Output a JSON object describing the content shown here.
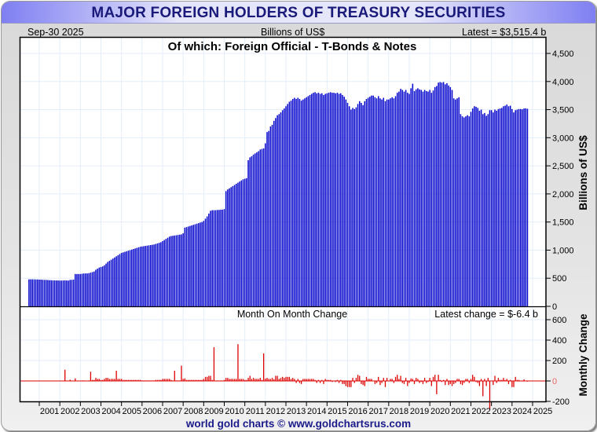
{
  "header": {
    "title": "MAJOR FOREIGN HOLDERS OF TREASURY SECURITIES",
    "date": "Sep-30  2025",
    "units": "Billions of US$",
    "latest": "Latest = $3,515.4 b"
  },
  "footer": {
    "credit": "world gold charts © www.goldchartsrus.com"
  },
  "chart_data": [
    {
      "type": "bar",
      "title": "Of which: Foreign Official - T-Bonds & Notes",
      "ylabel": "Billions of US$",
      "xlabel": "",
      "ylim": [
        0,
        4600
      ],
      "yticks": [
        0,
        500,
        1000,
        1500,
        2000,
        2500,
        3000,
        3500,
        4000,
        4500
      ],
      "ytick_labels": [
        "0",
        "500",
        "1,000",
        "1,500",
        "2,000",
        "2,500",
        "3,000",
        "3,500",
        "4,000",
        "4,500"
      ],
      "grid": true,
      "color": "#0000cc",
      "start": "2000-07",
      "frequency": "monthly",
      "values": [
        480,
        480,
        480,
        480,
        478,
        478,
        475,
        475,
        472,
        470,
        470,
        468,
        465,
        465,
        462,
        462,
        460,
        460,
        458,
        458,
        460,
        462,
        460,
        458,
        470,
        472,
        475,
        575,
        575,
        575,
        575,
        580,
        585,
        585,
        585,
        590,
        600,
        610,
        620,
        650,
        670,
        690,
        700,
        710,
        730,
        760,
        790,
        810,
        830,
        850,
        870,
        890,
        910,
        930,
        950,
        960,
        970,
        980,
        990,
        1000,
        1010,
        1020,
        1030,
        1040,
        1050,
        1060,
        1065,
        1070,
        1075,
        1080,
        1085,
        1090,
        1095,
        1100,
        1110,
        1120,
        1130,
        1140,
        1160,
        1180,
        1200,
        1220,
        1240,
        1250,
        1255,
        1260,
        1265,
        1270,
        1275,
        1280,
        1300,
        1400,
        1410,
        1420,
        1430,
        1440,
        1450,
        1460,
        1470,
        1480,
        1490,
        1500,
        1520,
        1560,
        1600,
        1650,
        1700,
        1710,
        1710,
        1710,
        1715,
        1715,
        1720,
        1720,
        1730,
        2050,
        2080,
        2100,
        2120,
        2140,
        2160,
        2180,
        2200,
        2220,
        2240,
        2260,
        2270,
        2280,
        2600,
        2650,
        2670,
        2700,
        2720,
        2740,
        2760,
        2790,
        2800,
        2810,
        2900,
        3100,
        3120,
        3200,
        3230,
        3300,
        3350,
        3400,
        3420,
        3450,
        3490,
        3520,
        3560,
        3600,
        3640,
        3660,
        3690,
        3710,
        3690,
        3710,
        3690,
        3660,
        3680,
        3700,
        3720,
        3740,
        3760,
        3780,
        3800,
        3810,
        3790,
        3800,
        3780,
        3790,
        3760,
        3780,
        3790,
        3800,
        3810,
        3800,
        3800,
        3790,
        3800,
        3780,
        3790,
        3760,
        3730,
        3680,
        3620,
        3560,
        3500,
        3530,
        3510,
        3540,
        3600,
        3650,
        3620,
        3580,
        3650,
        3690,
        3710,
        3730,
        3750,
        3750,
        3720,
        3700,
        3740,
        3700,
        3680,
        3710,
        3650,
        3680,
        3680,
        3700,
        3720,
        3700,
        3740,
        3800,
        3820,
        3870,
        3850,
        3820,
        3850,
        3800,
        3780,
        3880,
        3960,
        3830,
        3860,
        3880,
        3860,
        3850,
        3820,
        3850,
        3830,
        3820,
        3850,
        3800,
        3840,
        3900,
        3920,
        3980,
        3990,
        3980,
        3990,
        3950,
        3970,
        3930,
        3900,
        3850,
        3700,
        3680,
        3700,
        3720,
        3420,
        3380,
        3360,
        3380,
        3400,
        3380,
        3460,
        3520,
        3560,
        3550,
        3530,
        3480,
        3500,
        3420,
        3440,
        3390,
        3420,
        3490,
        3490,
        3450,
        3500,
        3480,
        3510,
        3520,
        3530,
        3560,
        3570,
        3590,
        3560,
        3570,
        3510,
        3450,
        3490,
        3500,
        3510,
        3510,
        3505,
        3520,
        3522,
        3515
      ]
    },
    {
      "type": "bar",
      "title": "Month On Month Change",
      "annotation": "Latest change = $-6.4 b",
      "ylabel": "Monthly Change",
      "ylim": [
        -200,
        650
      ],
      "yticks": [
        -200,
        0,
        200,
        400,
        600
      ],
      "ytick_labels": [
        "-200",
        "0",
        "200",
        "400",
        "600"
      ],
      "grid": true,
      "color": "#dd0000",
      "derived_from": "month-on-month difference of the series above",
      "spikes": [
        {
          "date": "2002-04",
          "value": 110
        },
        {
          "date": "2003-07",
          "value": 90
        },
        {
          "date": "2004-10",
          "value": 100
        },
        {
          "date": "2007-08",
          "value": 100
        },
        {
          "date": "2007-12",
          "value": 150
        },
        {
          "date": "2009-07",
          "value": 330
        },
        {
          "date": "2010-09",
          "value": 360
        },
        {
          "date": "2011-12",
          "value": 270
        },
        {
          "date": "2016-11",
          "value": -50
        },
        {
          "date": "2020-05",
          "value": -130
        },
        {
          "date": "2022-08",
          "value": -150
        },
        {
          "date": "2022-12",
          "value": -280
        }
      ]
    }
  ],
  "xaxis": {
    "tick_labels": [
      "2001",
      "2002",
      "2003",
      "2004",
      "2005",
      "2006",
      "2007",
      "2008",
      "2009",
      "2010",
      "2011",
      "2012",
      "2013",
      "2014",
      "2015",
      "2016",
      "2017",
      "2018",
      "2019",
      "2020",
      "2021",
      "2022",
      "2023",
      "2024",
      "2025"
    ]
  }
}
